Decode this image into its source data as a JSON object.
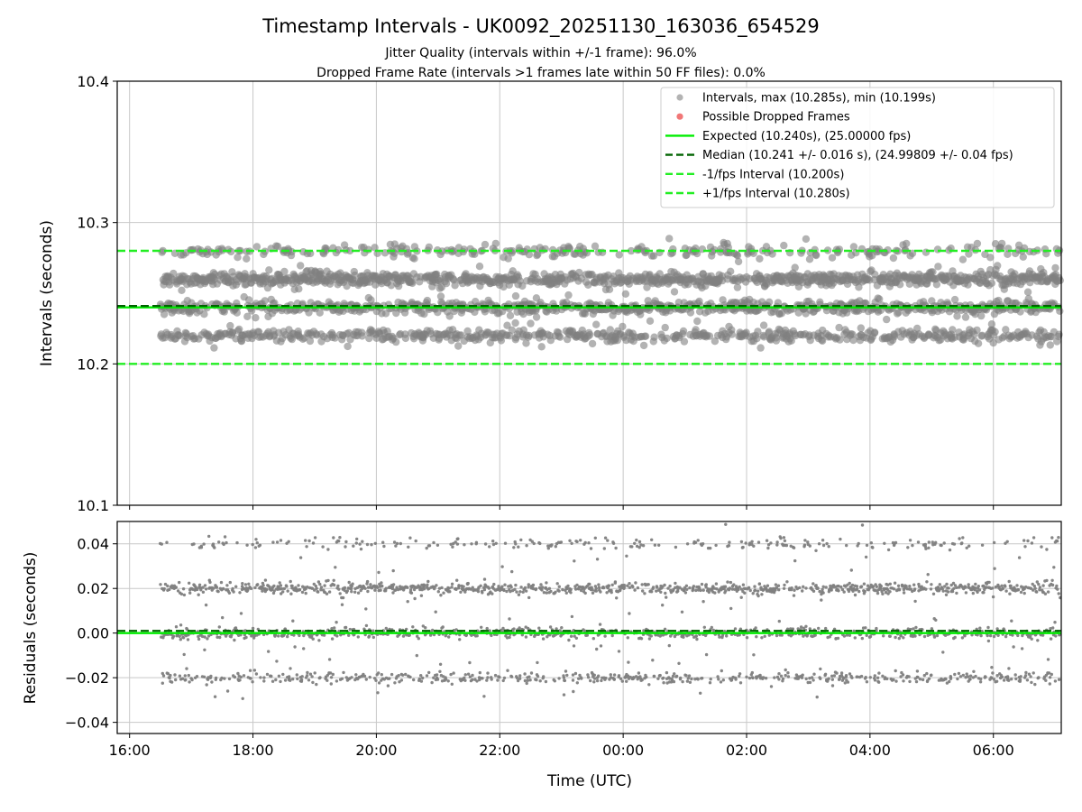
{
  "figure": {
    "title": "Timestamp Intervals - UK0092_20251130_163036_654529",
    "subtitle_1": "Jitter Quality (intervals within +/-1 frame): 96.0%",
    "subtitle_2": "Dropped Frame Rate (intervals >1 frames late within 50 FF files): 0.0%",
    "xlabel": "Time (UTC)"
  },
  "colors": {
    "points": "#808080",
    "dropped": "#ee4444",
    "expected": "#00ee00",
    "median": "#006400",
    "interval": "#22ee22",
    "grid": "#c8c8c8"
  },
  "chart_data": [
    {
      "type": "scatter",
      "name": "intervals",
      "ylabel": "Intervals (seconds)",
      "ylim": [
        10.1,
        10.4
      ],
      "y_ticks": [
        10.1,
        10.2,
        10.3,
        10.4
      ],
      "y_tick_labels": [
        "10.1",
        "10.2",
        "10.3",
        "10.4"
      ],
      "xlim_hours": [
        15.8,
        31.1
      ],
      "x_data_range_hours": [
        16.5,
        31.1
      ],
      "x_ticks_hours": [
        16,
        18,
        20,
        22,
        24,
        26,
        28,
        30
      ],
      "x_tick_labels": [
        "16:00",
        "18:00",
        "20:00",
        "22:00",
        "00:00",
        "02:00",
        "04:00",
        "06:00"
      ],
      "point_levels": [
        10.22,
        10.24,
        10.26,
        10.28
      ],
      "level_weights": [
        0.22,
        0.3,
        0.38,
        0.1
      ],
      "max": 10.285,
      "min": 10.199,
      "expected": 10.24,
      "median": 10.241,
      "lower_interval": 10.2,
      "upper_interval": 10.28,
      "legend_position": "upper-right",
      "legend": [
        {
          "label": "Intervals, max (10.285s), min (10.199s)",
          "kind": "dot",
          "color": "#a0a0a0"
        },
        {
          "label": "Possible Dropped Frames",
          "kind": "dot",
          "color": "#ee5555"
        },
        {
          "label": "Expected (10.240s), (25.00000 fps)",
          "kind": "solid",
          "color": "#00ee00"
        },
        {
          "label": "Median (10.241 +/- 0.016 s), (24.99809 +/- 0.04 fps)",
          "kind": "dashed",
          "color": "#006400"
        },
        {
          "label": "-1/fps Interval (10.200s)",
          "kind": "dashed",
          "color": "#22ee22"
        },
        {
          "label": "+1/fps Interval (10.280s)",
          "kind": "dashed",
          "color": "#22ee22"
        }
      ]
    },
    {
      "type": "scatter",
      "name": "residuals",
      "ylabel": "Residuals (seconds)",
      "ylim": [
        -0.045,
        0.05
      ],
      "y_ticks": [
        -0.04,
        -0.02,
        0.0,
        0.02,
        0.04
      ],
      "y_tick_labels": [
        "−0.04",
        "−0.02",
        "0.00",
        "0.02",
        "0.04"
      ],
      "xlim_hours": [
        15.8,
        31.1
      ],
      "x_data_range_hours": [
        16.5,
        31.1
      ],
      "x_ticks_hours": [
        16,
        18,
        20,
        22,
        24,
        26,
        28,
        30
      ],
      "x_tick_labels": [
        "16:00",
        "18:00",
        "20:00",
        "22:00",
        "00:00",
        "02:00",
        "04:00",
        "06:00"
      ],
      "point_levels": [
        -0.02,
        0.0,
        0.02,
        0.04
      ],
      "level_weights": [
        0.22,
        0.3,
        0.38,
        0.1
      ],
      "expected": 0.0,
      "median": 0.001
    }
  ]
}
